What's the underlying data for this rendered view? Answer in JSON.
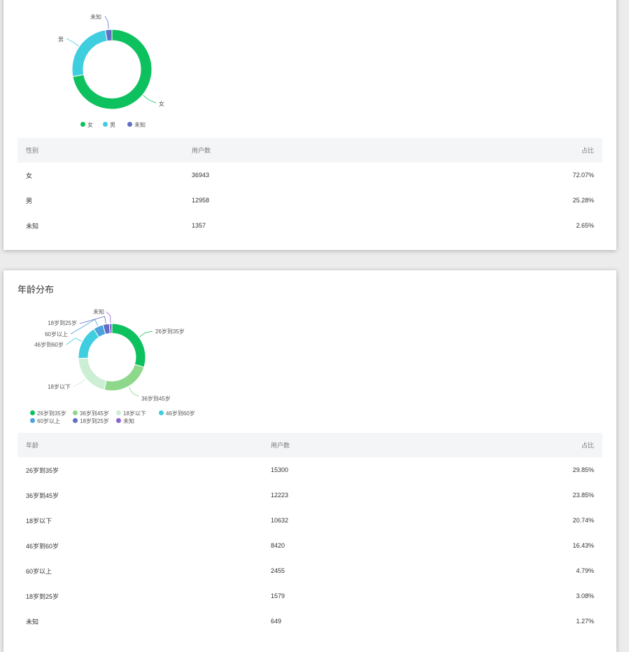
{
  "colors": {
    "green": "#0dc15e",
    "cyan": "#3fcde0",
    "indigo": "#5f6fc4",
    "light_green": "#8ed88b",
    "pale_green": "#cceed4",
    "blue": "#4aa3df",
    "purple": "#8a63d2"
  },
  "gender": {
    "table": {
      "headers": [
        "性别",
        "用户数",
        "占比"
      ],
      "rows": [
        [
          "女",
          "36943",
          "72.07%"
        ],
        [
          "男",
          "12958",
          "25.28%"
        ],
        [
          "未知",
          "1357",
          "2.65%"
        ]
      ]
    }
  },
  "age": {
    "title": "年龄分布",
    "table": {
      "headers": [
        "年龄",
        "用户数",
        "占比"
      ],
      "rows": [
        [
          "26岁到35岁",
          "15300",
          "29.85%"
        ],
        [
          "36岁到45岁",
          "12223",
          "23.85%"
        ],
        [
          "18岁以下",
          "10632",
          "20.74%"
        ],
        [
          "46岁到60岁",
          "8420",
          "16.43%"
        ],
        [
          "60岁以上",
          "2455",
          "4.79%"
        ],
        [
          "18岁到25岁",
          "1579",
          "3.08%"
        ],
        [
          "未知",
          "649",
          "1.27%"
        ]
      ]
    }
  },
  "chart_data": [
    {
      "type": "pie",
      "categories": [
        "女",
        "男",
        "未知"
      ],
      "values": [
        36943,
        12958,
        1357
      ],
      "colors": [
        "#0dc15e",
        "#3fcde0",
        "#5f6fc4"
      ],
      "legend": "bottom"
    },
    {
      "type": "pie",
      "title": "年龄分布",
      "categories": [
        "26岁到35岁",
        "36岁到45岁",
        "18岁以下",
        "46岁到60岁",
        "60岁以上",
        "18岁到25岁",
        "未知"
      ],
      "values": [
        15300,
        12223,
        10632,
        8420,
        2455,
        1579,
        649
      ],
      "colors": [
        "#0dc15e",
        "#8ed88b",
        "#cceed4",
        "#3fcde0",
        "#4aa3df",
        "#5f6fc4",
        "#8a63d2"
      ],
      "legend": "bottom"
    }
  ]
}
